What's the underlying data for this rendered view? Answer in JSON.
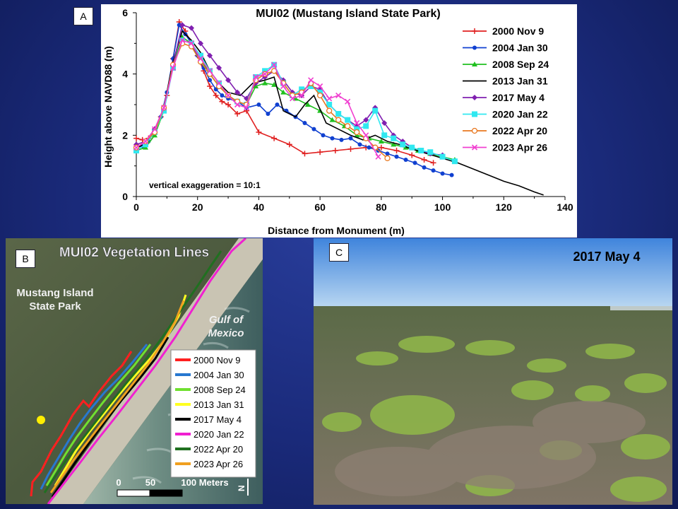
{
  "panel_a": {
    "label": "A",
    "chart_data": {
      "type": "line",
      "title": "MUI02 (Mustang Island State Park)",
      "xlabel": "Distance from Monument (m)",
      "ylabel": "Height above NAVD88 (m)",
      "xlim": [
        0,
        140
      ],
      "ylim": [
        0,
        6
      ],
      "xticks": [
        0,
        20,
        40,
        60,
        80,
        100,
        120,
        140
      ],
      "yticks": [
        0,
        2,
        4,
        6
      ],
      "grid": false,
      "legend_position": "top-right",
      "annotation": "vertical exaggeration = 10:1",
      "series": [
        {
          "name": "2000 Nov 9",
          "color": "#e02020",
          "marker": "plus",
          "x": [
            0,
            2,
            4,
            6,
            8,
            10,
            12,
            14,
            16,
            18,
            20,
            22,
            24,
            26,
            28,
            30,
            33,
            36,
            40,
            45,
            50,
            55,
            60,
            65,
            70,
            75,
            80,
            85,
            90,
            94,
            97
          ],
          "y": [
            1.9,
            1.85,
            1.9,
            2.2,
            2.6,
            3.3,
            4.5,
            5.7,
            5.4,
            5.0,
            4.6,
            4.1,
            3.6,
            3.3,
            3.1,
            3.0,
            2.7,
            2.8,
            2.1,
            1.9,
            1.7,
            1.4,
            1.45,
            1.5,
            1.55,
            1.6,
            1.6,
            1.5,
            1.35,
            1.2,
            1.1
          ]
        },
        {
          "name": "2004 Jan 30",
          "color": "#1040d0",
          "marker": "circle",
          "x": [
            0,
            2,
            4,
            6,
            8,
            10,
            12,
            14,
            16,
            18,
            20,
            22,
            24,
            26,
            28,
            30,
            33,
            36,
            40,
            43,
            46,
            49,
            52,
            55,
            58,
            61,
            64,
            67,
            70,
            73,
            76,
            79,
            82,
            85,
            88,
            91,
            94,
            97,
            100,
            103
          ],
          "y": [
            1.6,
            1.65,
            1.8,
            2.2,
            2.6,
            3.4,
            4.5,
            5.6,
            5.3,
            5.0,
            4.6,
            4.2,
            3.8,
            3.5,
            3.3,
            3.2,
            3.1,
            2.9,
            3.0,
            2.7,
            3.0,
            2.8,
            2.6,
            2.4,
            2.2,
            2.0,
            1.9,
            1.85,
            1.9,
            1.7,
            1.6,
            1.5,
            1.4,
            1.3,
            1.2,
            1.1,
            0.95,
            0.85,
            0.75,
            0.7
          ]
        },
        {
          "name": "2008 Sep 24",
          "color": "#20c020",
          "marker": "triangle",
          "x": [
            0,
            3,
            6,
            9,
            12,
            15,
            18,
            21,
            24,
            27,
            30,
            33,
            36,
            39,
            42,
            45,
            48,
            52,
            56,
            60,
            64,
            68,
            72,
            76,
            80,
            84,
            88,
            92,
            96,
            100,
            104
          ],
          "y": [
            1.5,
            1.6,
            2.0,
            2.8,
            4.3,
            5.2,
            5.0,
            4.5,
            4.0,
            3.6,
            3.3,
            3.1,
            3.0,
            3.6,
            3.7,
            3.65,
            3.4,
            3.2,
            3.0,
            2.8,
            2.5,
            2.3,
            2.0,
            1.9,
            1.8,
            1.7,
            1.6,
            1.5,
            1.4,
            1.3,
            1.2
          ]
        },
        {
          "name": "2013 Jan 31",
          "color": "#000000",
          "marker": "none",
          "x": [
            0,
            3,
            6,
            9,
            12,
            15,
            18,
            21,
            24,
            27,
            30,
            34,
            38,
            42,
            45,
            48,
            52,
            55,
            58,
            62,
            66,
            70,
            74,
            78,
            82,
            86,
            90,
            95,
            100,
            105,
            110,
            115,
            120,
            125,
            130,
            133
          ],
          "y": [
            1.6,
            1.7,
            2.1,
            2.9,
            4.4,
            5.4,
            5.1,
            4.7,
            4.1,
            3.7,
            3.4,
            3.3,
            3.7,
            3.8,
            3.9,
            2.8,
            2.6,
            3.0,
            3.3,
            2.4,
            2.2,
            2.0,
            1.85,
            2.0,
            1.8,
            1.7,
            1.55,
            1.4,
            1.25,
            1.1,
            0.9,
            0.7,
            0.5,
            0.35,
            0.15,
            0.05
          ]
        },
        {
          "name": "2017 May 4",
          "color": "#8020b0",
          "marker": "diamond",
          "x": [
            0,
            3,
            6,
            9,
            12,
            15,
            18,
            21,
            24,
            27,
            30,
            33,
            36,
            39,
            42,
            45,
            48,
            51,
            54,
            57,
            60,
            63,
            66,
            69,
            72,
            75,
            78,
            81,
            84,
            87,
            90,
            93,
            96,
            100
          ],
          "y": [
            1.7,
            1.8,
            2.2,
            2.9,
            4.3,
            5.6,
            5.5,
            5.0,
            4.6,
            4.2,
            3.8,
            3.4,
            3.2,
            3.7,
            3.9,
            4.1,
            3.8,
            3.4,
            3.3,
            3.6,
            3.5,
            3.0,
            2.7,
            2.5,
            2.3,
            2.5,
            2.9,
            2.4,
            2.0,
            1.8,
            1.6,
            1.5,
            1.4,
            1.35
          ]
        },
        {
          "name": "2020 Jan 22",
          "color": "#30e8f0",
          "marker": "square",
          "x": [
            0,
            3,
            6,
            9,
            12,
            15,
            18,
            21,
            24,
            27,
            30,
            33,
            36,
            39,
            42,
            45,
            48,
            51,
            54,
            57,
            60,
            63,
            66,
            69,
            72,
            75,
            78,
            81,
            84,
            87,
            90,
            93,
            96,
            100,
            104
          ],
          "y": [
            1.5,
            1.7,
            2.1,
            2.8,
            4.2,
            5.1,
            5.0,
            4.6,
            4.1,
            3.7,
            3.3,
            3.1,
            3.0,
            3.9,
            4.1,
            4.3,
            3.7,
            3.3,
            3.5,
            3.6,
            3.4,
            3.0,
            2.7,
            2.5,
            2.2,
            2.3,
            2.8,
            2.0,
            1.9,
            1.7,
            1.6,
            1.5,
            1.45,
            1.3,
            1.15
          ]
        },
        {
          "name": "2022 Apr 20",
          "color": "#e87820",
          "marker": "open-circle",
          "x": [
            0,
            3,
            6,
            9,
            12,
            15,
            18,
            21,
            24,
            27,
            30,
            33,
            36,
            39,
            42,
            45,
            48,
            51,
            54,
            57,
            60,
            63,
            66,
            69,
            72,
            75,
            78,
            82
          ],
          "y": [
            1.6,
            1.8,
            2.1,
            2.9,
            4.3,
            5.0,
            4.9,
            4.4,
            4.0,
            3.6,
            3.3,
            3.1,
            3.0,
            3.8,
            4.0,
            4.1,
            3.7,
            3.3,
            3.4,
            3.7,
            3.3,
            2.8,
            2.5,
            2.3,
            2.1,
            1.9,
            1.6,
            1.25
          ]
        },
        {
          "name": "2023 Apr 26",
          "color": "#f040d0",
          "marker": "x",
          "x": [
            0,
            3,
            6,
            9,
            12,
            15,
            18,
            21,
            24,
            27,
            30,
            33,
            36,
            39,
            42,
            45,
            48,
            51,
            54,
            57,
            60,
            63,
            66,
            69,
            72,
            75,
            79
          ],
          "y": [
            1.6,
            1.8,
            2.2,
            2.9,
            4.2,
            5.1,
            5.0,
            4.5,
            4.1,
            3.7,
            3.3,
            3.0,
            2.9,
            3.9,
            4.0,
            4.3,
            3.6,
            3.2,
            3.3,
            3.8,
            3.6,
            3.2,
            3.3,
            3.1,
            2.4,
            2.0,
            1.3
          ]
        }
      ]
    }
  },
  "panel_b": {
    "label": "B",
    "title": "MUI02 Vegetation Lines",
    "place_label": "Mustang Island\nState Park",
    "gulf_label": "Gulf of\nMexico",
    "scale_labels": [
      "0",
      "50",
      "100 Meters"
    ],
    "north_label": "N",
    "legend": [
      {
        "name": "2000 Nov 9",
        "color": "#ff2020"
      },
      {
        "name": "2004 Jan 30",
        "color": "#2878d0"
      },
      {
        "name": "2008 Sep 24",
        "color": "#70e030"
      },
      {
        "name": "2013 Jan 31",
        "color": "#ffff20"
      },
      {
        "name": "2017 May 4",
        "color": "#000000"
      },
      {
        "name": "2020 Jan 22",
        "color": "#f020d0"
      },
      {
        "name": "2022 Apr 20",
        "color": "#207020"
      },
      {
        "name": "2023 Apr 26",
        "color": "#f0a020"
      }
    ]
  },
  "panel_c": {
    "label": "C",
    "photo_date": "2017 May 4"
  }
}
